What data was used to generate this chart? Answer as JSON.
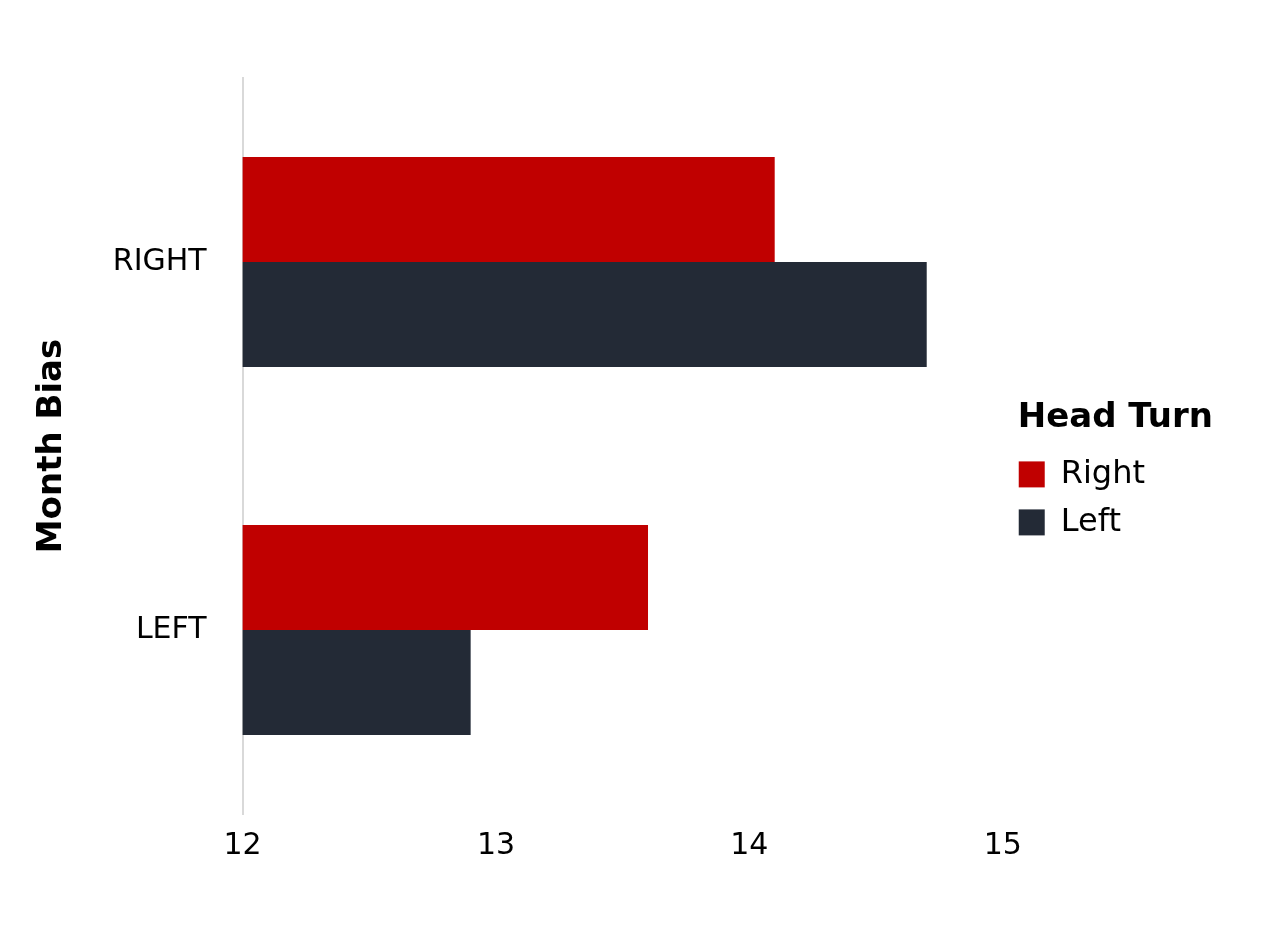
{
  "chart_data": {
    "type": "bar",
    "orientation": "horizontal",
    "ylabel": "Month Bias",
    "legend_title": "Head Turn",
    "categories": [
      "RIGHT",
      "LEFT"
    ],
    "series": [
      {
        "name": "Right",
        "color": "#c00000",
        "values": [
          14.1,
          13.6
        ]
      },
      {
        "name": "Left",
        "color": "#232a36",
        "values": [
          14.7,
          12.9
        ]
      }
    ],
    "xlim": [
      12,
      15
    ],
    "xticks": [
      12,
      13,
      14,
      15
    ],
    "grid": false,
    "legend": "right"
  }
}
